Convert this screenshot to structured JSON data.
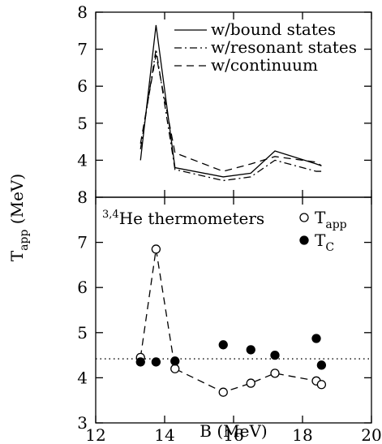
{
  "chart_data": [
    {
      "type": "line",
      "x": [
        13.3,
        13.75,
        14.3,
        15.7,
        16.5,
        17.2,
        18.4,
        18.55
      ],
      "xlim": [
        12,
        20
      ],
      "xticks": [
        12,
        14,
        16,
        18,
        20
      ],
      "ylim": [
        3,
        8
      ],
      "yticks": [
        4,
        5,
        6,
        7,
        8
      ],
      "series": [
        {
          "name": "w/bound states",
          "color": "#000",
          "dash": "solid",
          "values": [
            4.0,
            7.65,
            3.8,
            3.55,
            3.65,
            4.25,
            3.9,
            3.85
          ]
        },
        {
          "name": "w/resonant states",
          "color": "#000",
          "dash": "dashdot",
          "values": [
            4.3,
            7.0,
            3.75,
            3.45,
            3.55,
            4.0,
            3.7,
            3.7
          ]
        },
        {
          "name": "w/continuum",
          "color": "#000",
          "dash": "dashed",
          "values": [
            4.45,
            6.85,
            4.2,
            3.7,
            3.9,
            4.1,
            3.95,
            3.85
          ]
        }
      ]
    },
    {
      "type": "scatter",
      "x": [
        13.3,
        13.75,
        14.3,
        15.7,
        16.5,
        17.2,
        18.4,
        18.55
      ],
      "xlim": [
        12,
        20
      ],
      "xticks": [
        12,
        14,
        16,
        18,
        20
      ],
      "ylim": [
        3,
        8
      ],
      "yticks": [
        3,
        4,
        5,
        6,
        7,
        8
      ],
      "xlabel": "B (MeV)",
      "ylabel": {
        "text": "T",
        "sub": "app",
        "unit": " (MeV)"
      },
      "annotation": {
        "sup": "3,4",
        "text": "He thermometers"
      },
      "hline": 4.42,
      "series": [
        {
          "name": "T",
          "name_sub": "app",
          "color": "#000",
          "marker": "open",
          "line": "dashed",
          "values": [
            4.45,
            6.85,
            4.2,
            3.68,
            3.88,
            4.1,
            3.93,
            3.85
          ]
        },
        {
          "name": "T",
          "name_sub": "C",
          "color": "#000",
          "marker": "filled",
          "values": [
            4.35,
            4.35,
            4.37,
            4.73,
            4.62,
            4.5,
            4.87,
            4.28
          ]
        }
      ]
    }
  ]
}
